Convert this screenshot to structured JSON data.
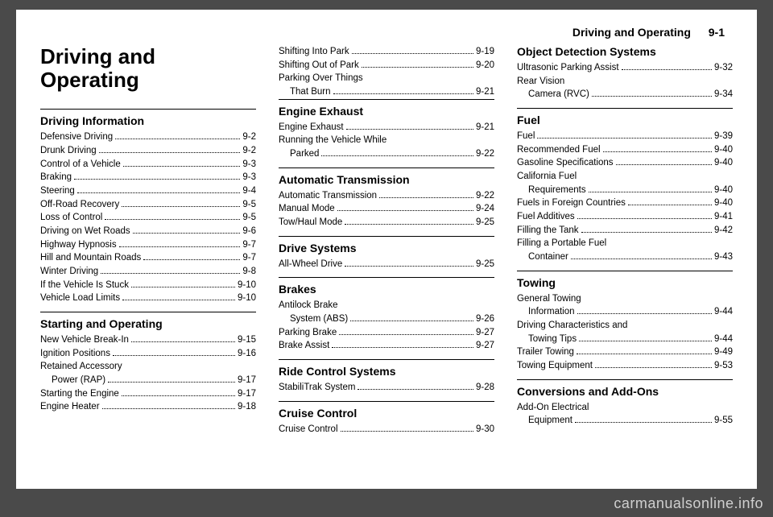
{
  "header": {
    "title": "Driving and Operating",
    "page": "9-1"
  },
  "main_title": "Driving and Operating",
  "col1": [
    {
      "type": "section",
      "text": "Driving Information"
    },
    {
      "type": "entry",
      "label": "Defensive Driving",
      "page": "9-2"
    },
    {
      "type": "entry",
      "label": "Drunk Driving",
      "page": "9-2"
    },
    {
      "type": "entry",
      "label": "Control of a Vehicle",
      "page": "9-3"
    },
    {
      "type": "entry",
      "label": "Braking",
      "page": "9-3"
    },
    {
      "type": "entry",
      "label": "Steering",
      "page": "9-4"
    },
    {
      "type": "entry",
      "label": "Off-Road Recovery",
      "page": "9-5"
    },
    {
      "type": "entry",
      "label": "Loss of Control",
      "page": "9-5"
    },
    {
      "type": "entry",
      "label": "Driving on Wet Roads",
      "page": "9-6"
    },
    {
      "type": "entry",
      "label": "Highway Hypnosis",
      "page": "9-7"
    },
    {
      "type": "entry",
      "label": "Hill and Mountain Roads",
      "page": "9-7"
    },
    {
      "type": "entry",
      "label": "Winter Driving",
      "page": "9-8"
    },
    {
      "type": "entry",
      "label": "If the Vehicle Is Stuck",
      "page": "9-10"
    },
    {
      "type": "entry",
      "label": "Vehicle Load Limits",
      "page": "9-10"
    },
    {
      "type": "section",
      "text": "Starting and Operating"
    },
    {
      "type": "entry",
      "label": "New Vehicle Break-In",
      "page": "9-15"
    },
    {
      "type": "entry",
      "label": "Ignition Positions",
      "page": "9-16"
    },
    {
      "type": "wrap",
      "line1": "Retained Accessory",
      "line2": "Power (RAP)",
      "page": "9-17"
    },
    {
      "type": "entry",
      "label": "Starting the Engine",
      "page": "9-17"
    },
    {
      "type": "entry",
      "label": "Engine Heater",
      "page": "9-18"
    }
  ],
  "col2": [
    {
      "type": "entry",
      "label": "Shifting Into Park",
      "page": "9-19"
    },
    {
      "type": "entry",
      "label": "Shifting Out of Park",
      "page": "9-20"
    },
    {
      "type": "wrap",
      "line1": "Parking Over Things",
      "line2": "That Burn",
      "page": "9-21"
    },
    {
      "type": "section",
      "text": "Engine Exhaust"
    },
    {
      "type": "entry",
      "label": "Engine Exhaust",
      "page": "9-21"
    },
    {
      "type": "wrap",
      "line1": "Running the Vehicle While",
      "line2": "Parked",
      "page": "9-22"
    },
    {
      "type": "section",
      "text": "Automatic Transmission"
    },
    {
      "type": "entry",
      "label": "Automatic Transmission",
      "page": "9-22"
    },
    {
      "type": "entry",
      "label": "Manual Mode",
      "page": "9-24"
    },
    {
      "type": "entry",
      "label": "Tow/Haul Mode",
      "page": "9-25"
    },
    {
      "type": "section",
      "text": "Drive Systems"
    },
    {
      "type": "entry",
      "label": "All-Wheel Drive",
      "page": "9-25"
    },
    {
      "type": "section",
      "text": "Brakes"
    },
    {
      "type": "wrap",
      "line1": "Antilock Brake",
      "line2": "System (ABS)",
      "page": "9-26"
    },
    {
      "type": "entry",
      "label": "Parking Brake",
      "page": "9-27"
    },
    {
      "type": "entry",
      "label": "Brake Assist",
      "page": "9-27"
    },
    {
      "type": "section",
      "text": "Ride Control Systems"
    },
    {
      "type": "entry",
      "label": "StabiliTrak System",
      "page": "9-28"
    },
    {
      "type": "section",
      "text": "Cruise Control"
    },
    {
      "type": "entry",
      "label": "Cruise Control",
      "page": "9-30"
    }
  ],
  "col3": [
    {
      "type": "section",
      "text": "Object Detection Systems",
      "noborder": true
    },
    {
      "type": "entry",
      "label": "Ultrasonic Parking Assist",
      "page": "9-32"
    },
    {
      "type": "wrap",
      "line1": "Rear Vision",
      "line2": "Camera (RVC)",
      "page": "9-34"
    },
    {
      "type": "section",
      "text": "Fuel"
    },
    {
      "type": "entry",
      "label": "Fuel",
      "page": "9-39"
    },
    {
      "type": "entry",
      "label": "Recommended Fuel",
      "page": "9-40"
    },
    {
      "type": "entry",
      "label": "Gasoline Specifications",
      "page": "9-40"
    },
    {
      "type": "wrap",
      "line1": "California Fuel",
      "line2": "Requirements",
      "page": "9-40"
    },
    {
      "type": "entry",
      "label": "Fuels in Foreign Countries",
      "page": "9-40"
    },
    {
      "type": "entry",
      "label": "Fuel Additives",
      "page": "9-41"
    },
    {
      "type": "entry",
      "label": "Filling the Tank",
      "page": "9-42"
    },
    {
      "type": "wrap",
      "line1": "Filling a Portable Fuel",
      "line2": "Container",
      "page": "9-43"
    },
    {
      "type": "section",
      "text": "Towing"
    },
    {
      "type": "wrap",
      "line1": "General Towing",
      "line2": "Information",
      "page": "9-44"
    },
    {
      "type": "wrap",
      "line1": "Driving Characteristics and",
      "line2": "Towing Tips",
      "page": "9-44"
    },
    {
      "type": "entry",
      "label": "Trailer Towing",
      "page": "9-49"
    },
    {
      "type": "entry",
      "label": "Towing Equipment",
      "page": "9-53"
    },
    {
      "type": "section",
      "text": "Conversions and Add-Ons"
    },
    {
      "type": "wrap",
      "line1": "Add-On Electrical",
      "line2": "Equipment",
      "page": "9-55"
    }
  ],
  "watermark": "carmanualsonline.info"
}
